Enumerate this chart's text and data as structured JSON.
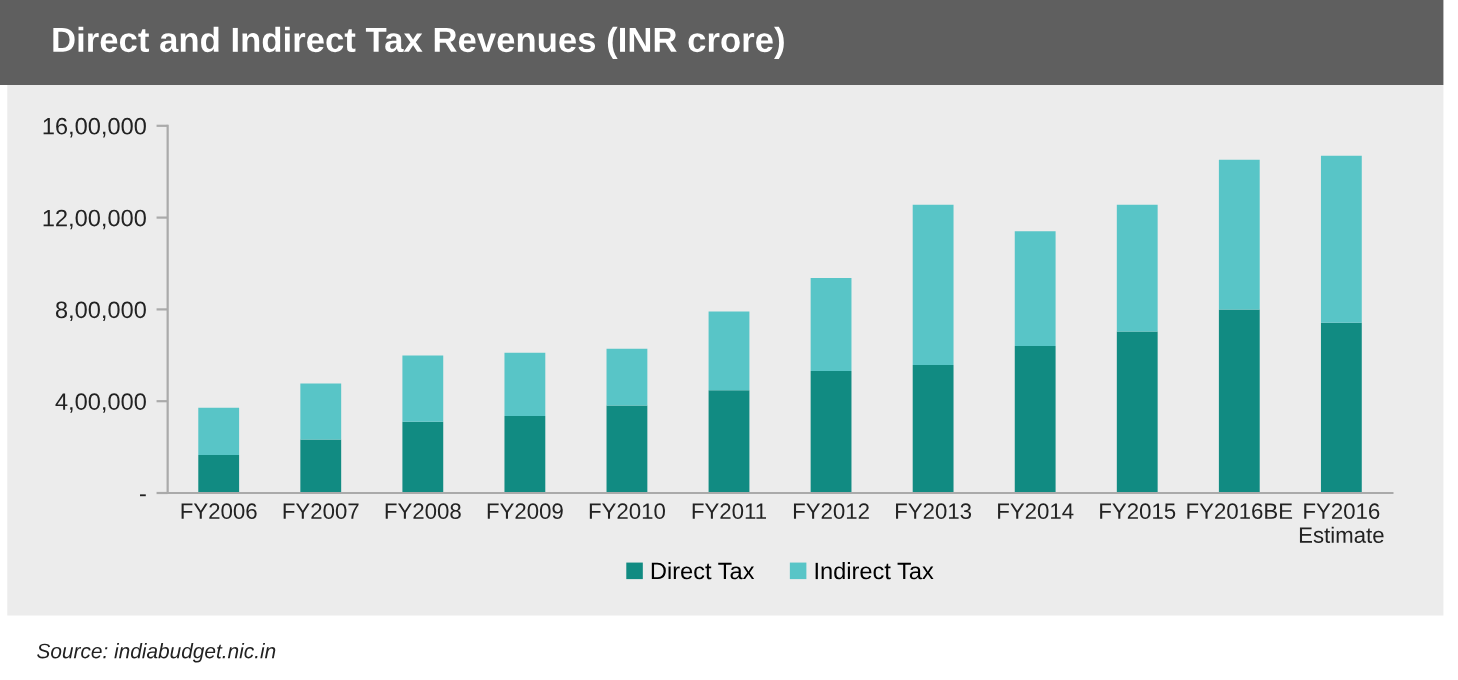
{
  "chart_data": {
    "type": "bar",
    "title": "Direct and Indirect Tax Revenues (INR crore)",
    "stacked": true,
    "categories": [
      "FY2006",
      "FY2007",
      "FY2008",
      "FY2009",
      "FY2010",
      "FY2011",
      "FY2012",
      "FY2013",
      "FY2014",
      "FY2015",
      "FY2016BE",
      "FY2016\nEstimate"
    ],
    "series": [
      {
        "name": "Direct Tax",
        "color": "#118b82",
        "values": [
          166000,
          233000,
          311000,
          335000,
          381000,
          448000,
          532000,
          558000,
          640000,
          704000,
          800000,
          742000
        ]
      },
      {
        "name": "Indirect Tax",
        "color": "#58c5c7",
        "values": [
          206000,
          244000,
          288000,
          276000,
          247000,
          343000,
          405000,
          698000,
          500000,
          552000,
          652000,
          727000
        ]
      }
    ],
    "ylim": [
      0,
      1600000
    ],
    "yticks": [
      {
        "value": 0,
        "label": "-"
      },
      {
        "value": 400000,
        "label": "4,00,000"
      },
      {
        "value": 800000,
        "label": "8,00,000"
      },
      {
        "value": 1200000,
        "label": "12,00,000"
      },
      {
        "value": 1600000,
        "label": "16,00,000"
      }
    ],
    "grid": false,
    "legend": "bottom",
    "annotations": [
      "Source: indiabudget.nic.in"
    ]
  }
}
